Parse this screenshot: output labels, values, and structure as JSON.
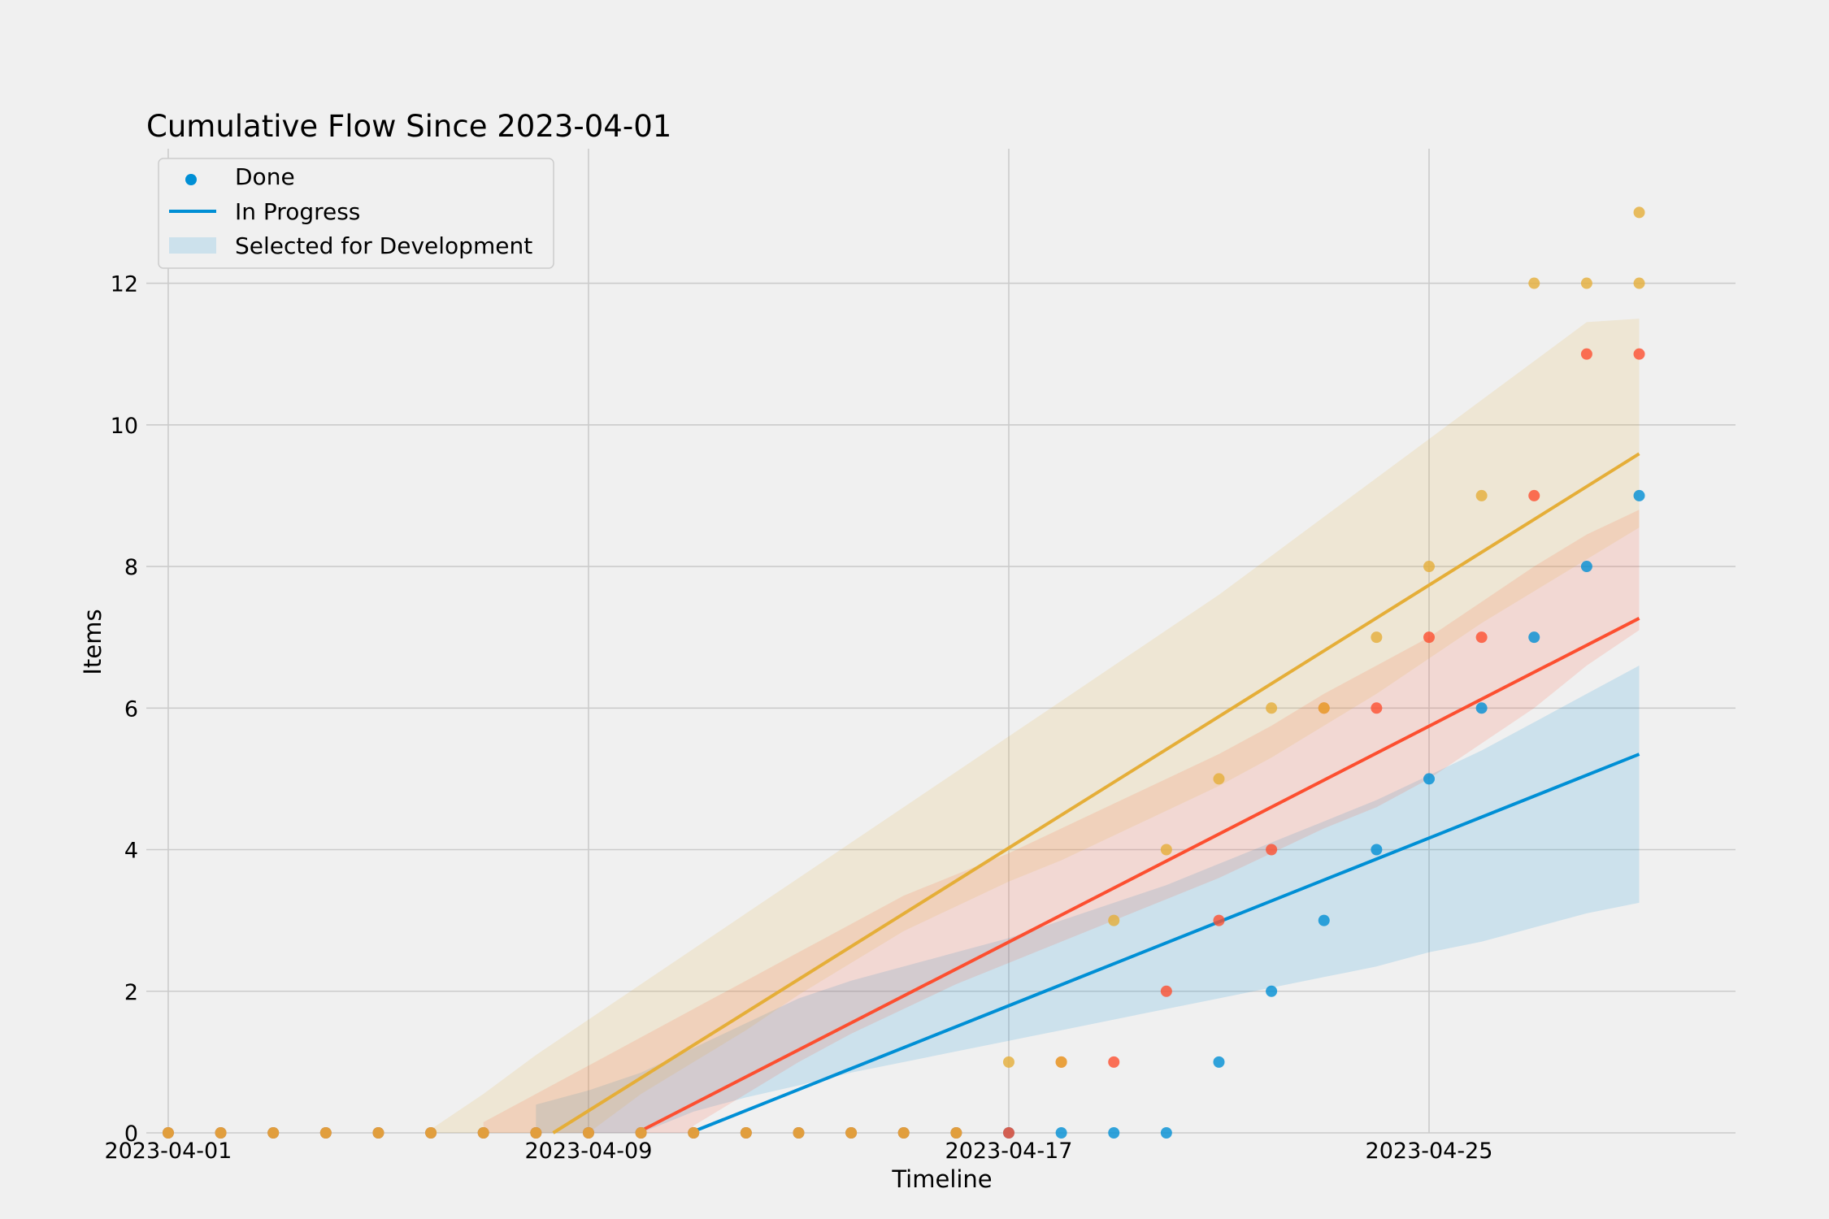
{
  "chart_data": {
    "type": "scatter",
    "title": "Cumulative Flow Since 2023-04-01",
    "xlabel": "Timeline",
    "ylabel": "Items",
    "x_start": "2023-04-01",
    "x": [
      "2023-04-01",
      "2023-04-02",
      "2023-04-03",
      "2023-04-04",
      "2023-04-05",
      "2023-04-06",
      "2023-04-07",
      "2023-04-08",
      "2023-04-09",
      "2023-04-10",
      "2023-04-11",
      "2023-04-12",
      "2023-04-13",
      "2023-04-14",
      "2023-04-15",
      "2023-04-16",
      "2023-04-17",
      "2023-04-18",
      "2023-04-19",
      "2023-04-20",
      "2023-04-21",
      "2023-04-22",
      "2023-04-23",
      "2023-04-24",
      "2023-04-25",
      "2023-04-26",
      "2023-04-27",
      "2023-04-28",
      "2023-04-29"
    ],
    "xticks": [
      "2023-04-01",
      "2023-04-09",
      "2023-04-17",
      "2023-04-25"
    ],
    "yticks": [
      0,
      2,
      4,
      6,
      8,
      10,
      12
    ],
    "xlim": [
      "2023-03-31T14:00",
      "2023-04-30T20:00"
    ],
    "ylim": [
      0,
      13.9
    ],
    "grid": true,
    "legend_position": "upper-left",
    "legend": {
      "scatter_label": "Done",
      "line_label": "In Progress",
      "band_label": "Selected for Development"
    },
    "series": [
      {
        "name": "Done",
        "color": "#008fd5",
        "values": [
          0,
          0,
          0,
          0,
          0,
          0,
          0,
          0,
          0,
          0,
          0,
          0,
          0,
          0,
          0,
          0,
          0,
          0,
          0,
          0,
          1,
          2,
          3,
          4,
          5,
          6,
          7,
          8,
          9
        ],
        "fit": {
          "slope": 0.296,
          "intercept": -2.94
        },
        "band_lower": [
          null,
          null,
          null,
          null,
          null,
          null,
          null,
          null,
          null,
          0,
          0.3,
          0.5,
          0.67,
          0.85,
          1.0,
          1.15,
          1.3,
          1.45,
          1.6,
          1.75,
          1.9,
          2.05,
          2.2,
          2.35,
          2.55,
          2.7,
          2.9,
          3.1,
          3.25
        ],
        "band_upper": [
          null,
          null,
          null,
          null,
          null,
          null,
          null,
          0.4,
          0.6,
          0.85,
          1.2,
          1.55,
          1.9,
          2.15,
          2.35,
          2.55,
          2.75,
          3.0,
          3.25,
          3.5,
          3.8,
          4.1,
          4.4,
          4.7,
          5.05,
          5.4,
          5.8,
          6.2,
          6.6
        ]
      },
      {
        "name": "",
        "color": "#fc4f30",
        "values": [
          0,
          0,
          0,
          0,
          0,
          0,
          0,
          0,
          0,
          0,
          0,
          0,
          0,
          0,
          0,
          0,
          0,
          1,
          1,
          2,
          3,
          4,
          6,
          6,
          7,
          7,
          9,
          11,
          11
        ],
        "fit": {
          "slope": 0.381,
          "intercept": -3.4
        },
        "band_lower": [
          null,
          null,
          null,
          null,
          null,
          null,
          null,
          null,
          null,
          null,
          0.1,
          0.55,
          1.0,
          1.4,
          1.75,
          2.1,
          2.4,
          2.7,
          3.0,
          3.3,
          3.6,
          3.95,
          4.3,
          4.6,
          5.0,
          5.5,
          6.0,
          6.6,
          7.1
        ],
        "band_upper": [
          null,
          null,
          null,
          null,
          null,
          null,
          0.15,
          0.55,
          0.95,
          1.35,
          1.75,
          2.15,
          2.55,
          2.95,
          3.35,
          3.65,
          3.95,
          4.3,
          4.65,
          5.0,
          5.35,
          5.75,
          6.2,
          6.6,
          7.0,
          7.5,
          8.0,
          8.45,
          8.8
        ]
      },
      {
        "name": "",
        "color": "#e5ae38",
        "values": [
          0,
          0,
          0,
          0,
          0,
          0,
          0,
          0,
          0,
          0,
          0,
          0,
          0,
          0,
          0,
          0,
          1,
          1,
          3,
          4,
          5,
          6,
          6,
          7,
          8,
          9,
          12,
          12,
          12
        ],
        "fit": {
          "slope": 0.464,
          "intercept": -3.4
        },
        "band_lower": [
          null,
          null,
          null,
          null,
          null,
          null,
          null,
          null,
          0.0,
          0.55,
          1.0,
          1.45,
          1.95,
          2.4,
          2.85,
          3.2,
          3.55,
          3.85,
          4.2,
          4.55,
          4.9,
          5.3,
          5.75,
          6.2,
          6.7,
          7.2,
          7.65,
          8.1,
          8.55
        ],
        "band_upper": [
          null,
          null,
          null,
          null,
          null,
          0.05,
          0.55,
          1.1,
          1.6,
          2.1,
          2.6,
          3.1,
          3.6,
          4.1,
          4.6,
          5.1,
          5.6,
          6.1,
          6.6,
          7.1,
          7.6,
          8.15,
          8.7,
          9.25,
          9.8,
          10.35,
          10.9,
          11.45,
          11.5
        ]
      }
    ],
    "extra_points": [
      {
        "series": 2,
        "x": "2023-04-29",
        "value": 13
      }
    ]
  }
}
